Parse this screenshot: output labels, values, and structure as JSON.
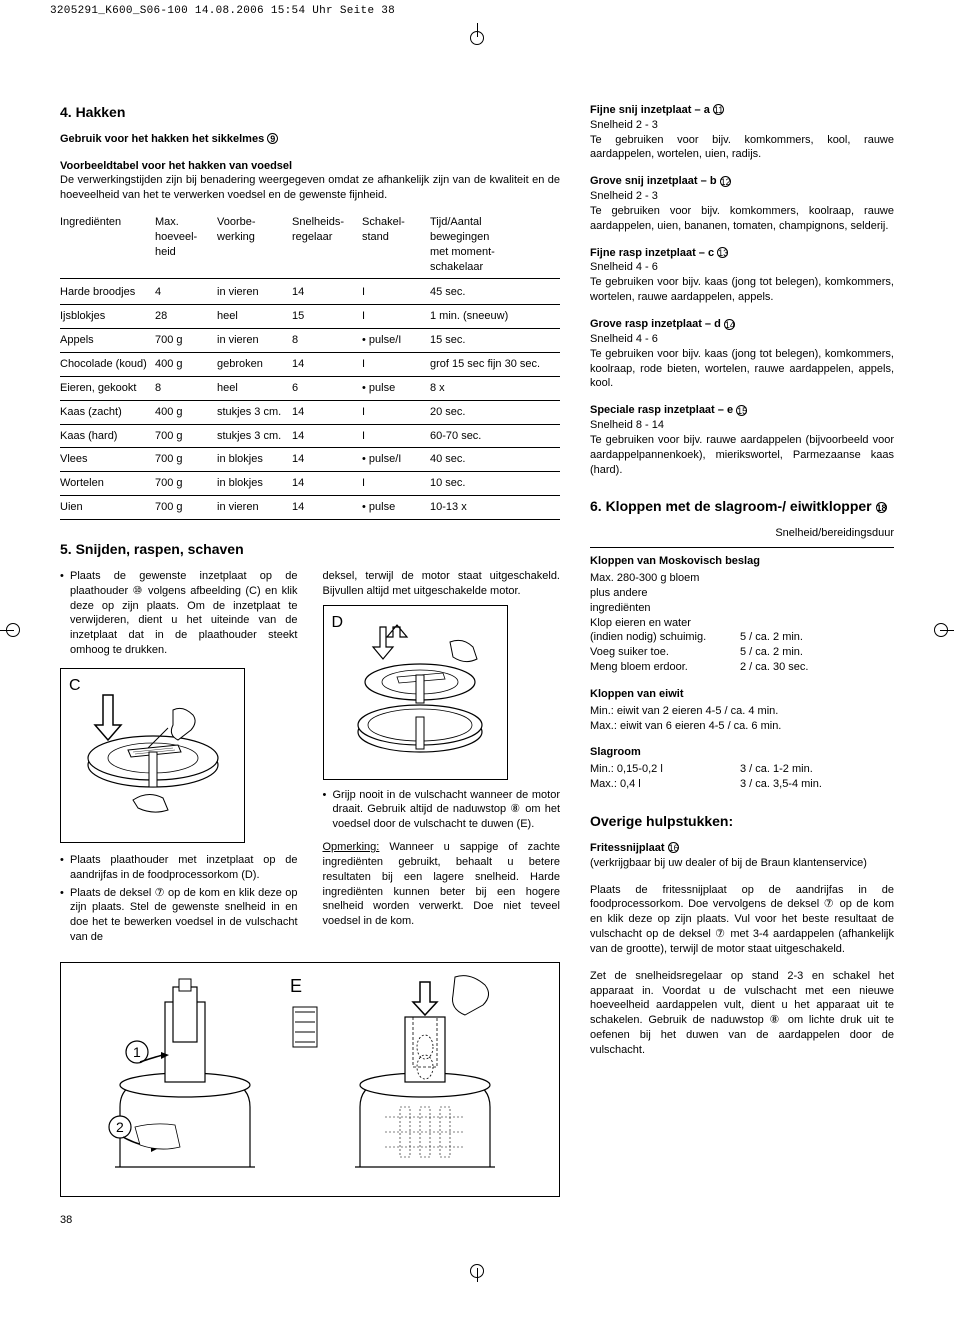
{
  "print_header": "3205291_K600_S06-100  14.08.2006  15:54 Uhr  Seite 38",
  "page_number": "38",
  "left": {
    "h4_title": "4. Hakken",
    "h4_sub": "Gebruik voor het hakken het sikkelmes",
    "h4_sub_ref": "9",
    "table_title": "Voorbeeldtabel voor het hakken van voedsel",
    "table_intro": "De verwerkingstijden zijn bij benadering weergegeven omdat ze afhankelijk zijn van de kwaliteit en de hoeveelheid van het te verwerken voedsel en de gewenste fijnheid.",
    "thead": [
      "Ingrediënten",
      "Max. hoeveel-heid",
      "Voorbe-werking",
      "Snelheids-regelaar",
      "Schakel-stand",
      "Tijd/Aantal bewegingen met moment-schakelaar"
    ],
    "rows": [
      [
        "Harde broodjes",
        "4",
        "in vieren",
        "14",
        "I",
        "45 sec."
      ],
      [
        "Ijsblokjes",
        "28",
        "heel",
        "15",
        "I",
        "1 min. (sneeuw)"
      ],
      [
        "Appels",
        "700 g",
        "in vieren",
        "8",
        "• pulse/I",
        "15 sec."
      ],
      [
        "Chocolade (koud)",
        "400 g",
        "gebroken",
        "14",
        "I",
        "grof 15 sec fijn 30 sec."
      ],
      [
        "Eieren, gekookt",
        "8",
        "heel",
        "6",
        "• pulse",
        "8 x"
      ],
      [
        "Kaas (zacht)",
        "400 g",
        "stukjes 3 cm.",
        "14",
        "I",
        "20 sec."
      ],
      [
        "Kaas (hard)",
        "700 g",
        "stukjes 3 cm.",
        "14",
        "I",
        "60-70 sec."
      ],
      [
        "Vlees",
        "700 g",
        "in blokjes",
        "14",
        "• pulse/I",
        "40 sec."
      ],
      [
        "Wortelen",
        "700 g",
        "in blokjes",
        "14",
        "I",
        "10 sec."
      ],
      [
        "Uien",
        "700 g",
        "in vieren",
        "14",
        "• pulse",
        "10-13 x"
      ]
    ],
    "h5_title": "5. Snijden, raspen, schaven",
    "h5_col1_b1": "Plaats de gewenste inzetplaat op de plaathouder ⑩ volgens afbeelding (C) en klik deze op zijn plaats. Om de inzetplaat te verwijderen, dient u het uiteinde van de inzetplaat dat in de plaathouder steekt omhoog te drukken.",
    "h5_col1_b2": "Plaats plaathouder met inzetplaat op de aandrijfas in de foodprocessorkom (D).",
    "h5_col1_b3": "Plaats de deksel ⑦ op de kom en klik deze op zijn plaats. Stel de gewenste snelheid in en doe het te bewerken voedsel in de vulschacht van de",
    "h5_col2_p1": "deksel, terwijl de motor staat uitgeschakeld. Bijvullen altijd met uitgeschakelde motor.",
    "h5_col2_b1": "Grijp nooit in de vulschacht wanneer de motor draait. Gebruik altijd de naduwstop ⑧ om het voedsel door de vulschacht te duwen (E).",
    "h5_note_label": "Opmerking:",
    "h5_note": "Wanneer u sappige of zachte ingrediënten gebruikt, behaalt u betere resultaten bij een lagere snelheid. Harde ingrediënten kunnen beter bij een hogere snelheid worden verwerkt. Doe niet teveel voedsel in de kom."
  },
  "right": {
    "ins": [
      {
        "title": "Fijne snij inzetplaat – a",
        "ref": "11",
        "speed": "Snelheid 2 - 3",
        "body": "Te gebruiken voor bijv. komkommers, kool, rauwe aardappelen, wortelen, uien, radijs."
      },
      {
        "title": "Grove snij inzetplaat – b",
        "ref": "12",
        "speed": "Snelheid 2 - 3",
        "body": "Te gebruiken voor bijv. komkommers, koolraap, rauwe aardappelen, uien, bananen, tomaten, champignons, selderij."
      },
      {
        "title": "Fijne rasp inzetplaat – c",
        "ref": "13",
        "speed": "Snelheid 4 - 6",
        "body": "Te gebruiken voor bijv. kaas (jong tot belegen), komkommers, wortelen, rauwe aardappelen, appels."
      },
      {
        "title": "Grove rasp inzetplaat – d",
        "ref": "14",
        "speed": "Snelheid 4 - 6",
        "body": "Te gebruiken voor bijv. kaas (jong tot belegen), komkommers, koolraap, rode bieten, wortelen, rauwe aardappelen, appels, kool."
      },
      {
        "title": "Speciale rasp inzetplaat – e",
        "ref": "15",
        "speed": "Snelheid 8 - 14",
        "body": "Te gebruiken voor bijv. rauwe aardappelen (bijvoorbeeld voor aardappelpannenkoek), mierikswortel, Parmezaanse kaas (hard)."
      }
    ],
    "h6_title": "6. Kloppen met de slagroom-/ eiwitklopper",
    "h6_ref": "18",
    "h6_sub": "Snelheid/bereidingsduur",
    "mosk_title": "Kloppen van Moskovisch beslag",
    "mosk_lines": [
      "Max. 280-300 g bloem",
      "plus andere",
      "ingrediënten",
      "Klop eieren en water"
    ],
    "mosk_kv": [
      [
        "(indien nodig) schuimig.",
        "5 / ca. 2 min."
      ],
      [
        "Voeg suiker toe.",
        "5 / ca. 2 min."
      ],
      [
        "Meng bloem erdoor.",
        "2 / ca. 30 sec."
      ]
    ],
    "eiwit_title": "Kloppen van eiwit",
    "eiwit_lines": [
      "Min.: eiwit van 2 eieren 4-5 / ca. 4 min.",
      "Max.: eiwit van 6 eieren 4-5 / ca. 6 min."
    ],
    "slag_title": "Slagroom",
    "slag_kv": [
      [
        "Min.: 0,15-0,2 l",
        "3 / ca. 1-2 min."
      ],
      [
        "Max.: 0,4 l",
        "3 / ca. 3,5-4 min."
      ]
    ],
    "overige_title": "Overige hulpstukken:",
    "frit_title": "Fritessnijplaat",
    "frit_ref": "16",
    "frit_sub": "(verkrijgbaar bij uw dealer of bij de Braun klantenservice)",
    "frit_p1": "Plaats de fritessnijplaat op de aandrijfas in de foodprocessorkom. Doe vervolgens de deksel ⑦ op de kom en klik deze op zijn plaats. Vul voor het beste resultaat de vulschacht op de deksel ⑦ met 3-4 aardappelen (afhankelijk van de grootte), terwijl de motor staat uitgeschakeld.",
    "frit_p2": "Zet de snelheidsregelaar op stand 2-3 en schakel het apparaat in. Voordat u de vulschacht met een nieuwe hoeveelheid aardappelen vult, dient u het apparaat uit te schakelen. Gebruik de naduwstop ⑧ om lichte druk uit te oefenen bij het duwen van de aardappelen door de vulschacht."
  }
}
